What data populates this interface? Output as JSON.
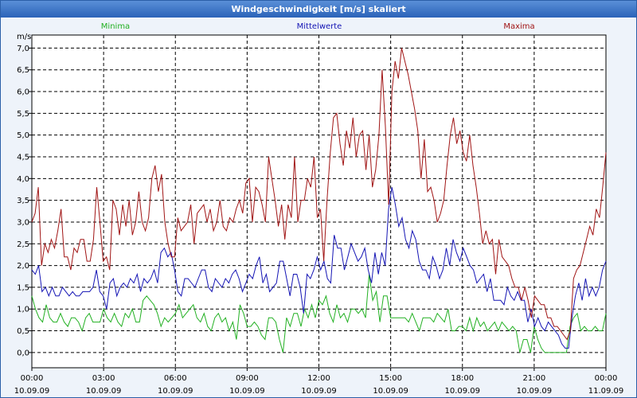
{
  "window": {
    "title": "Windgeschwindigkeit [m/s] skaliert"
  },
  "chart_data": {
    "type": "line",
    "title": "Windgeschwindigkeit [m/s] skaliert",
    "ylabel": "m/s",
    "xlabel": "",
    "ylim": [
      -0.35,
      7.3
    ],
    "xlim_hours": [
      0,
      24
    ],
    "grid": true,
    "legend_placement": "top",
    "y_ticks": [
      "0,0",
      "0,5",
      "1,0",
      "1,5",
      "2,0",
      "2,5",
      "3,0",
      "3,5",
      "4,0",
      "4,5",
      "5,0",
      "5,5",
      "6,0",
      "6,5",
      "7,0"
    ],
    "x_ticks": [
      {
        "time": "00:00",
        "date": "10.09.09"
      },
      {
        "time": "03:00",
        "date": "10.09.09"
      },
      {
        "time": "06:00",
        "date": "10.09.09"
      },
      {
        "time": "09:00",
        "date": "10.09.09"
      },
      {
        "time": "12:00",
        "date": "10.09.09"
      },
      {
        "time": "15:00",
        "date": "10.09.09"
      },
      {
        "time": "18:00",
        "date": "10.09.09"
      },
      {
        "time": "21:00",
        "date": "10.09.09"
      },
      {
        "time": "00:00",
        "date": "11.09.09"
      }
    ],
    "series": [
      {
        "name": "Minima",
        "color": "#22b022",
        "values": [
          1.3,
          1.0,
          0.8,
          0.7,
          1.1,
          0.8,
          0.7,
          0.7,
          0.9,
          0.7,
          0.6,
          0.8,
          0.8,
          0.7,
          0.5,
          0.8,
          0.9,
          0.7,
          0.7,
          0.7,
          1.0,
          0.8,
          0.7,
          0.9,
          0.7,
          0.6,
          0.9,
          0.8,
          1.0,
          0.7,
          0.7,
          1.2,
          1.3,
          1.2,
          1.1,
          0.9,
          0.6,
          0.8,
          0.7,
          0.8,
          0.9,
          1.1,
          0.8,
          0.9,
          1.0,
          1.1,
          0.8,
          0.7,
          0.9,
          0.6,
          0.5,
          0.8,
          0.9,
          0.7,
          0.8,
          0.5,
          0.7,
          0.3,
          1.1,
          0.9,
          0.6,
          0.6,
          0.7,
          0.6,
          0.4,
          0.3,
          0.8,
          0.8,
          0.7,
          0.3,
          0.0,
          0.8,
          0.6,
          0.9,
          0.9,
          0.6,
          1.0,
          0.8,
          1.1,
          0.8,
          1.2,
          1.1,
          1.3,
          0.9,
          0.7,
          1.1,
          0.8,
          0.9,
          0.7,
          1.0,
          1.0,
          0.9,
          1.0,
          0.8,
          1.8,
          1.2,
          1.4,
          0.7,
          1.3,
          1.3,
          0.8,
          0.8,
          0.8,
          0.8,
          0.8,
          0.7,
          0.9,
          0.7,
          0.5,
          0.8,
          0.8,
          0.8,
          0.7,
          0.9,
          0.8,
          0.7,
          1.0,
          0.5,
          0.5,
          0.6,
          0.6,
          0.5,
          0.8,
          0.5,
          0.8,
          0.6,
          0.7,
          0.5,
          0.6,
          0.7,
          0.5,
          0.7,
          0.6,
          0.5,
          0.6,
          0.5,
          0.0,
          0.3,
          0.3,
          0.0,
          0.6,
          0.3,
          0.1,
          0.0,
          0.0,
          0.0,
          0.0,
          0.0,
          0.0,
          0.0,
          0.6,
          0.8,
          0.9,
          0.5,
          0.6,
          0.5,
          0.5,
          0.6,
          0.5,
          0.5,
          0.9
        ]
      },
      {
        "name": "Mittelwerte",
        "color": "#1414b4",
        "values": [
          1.9,
          1.8,
          2.0,
          1.4,
          1.5,
          1.3,
          1.5,
          1.3,
          1.3,
          1.5,
          1.4,
          1.3,
          1.4,
          1.3,
          1.3,
          1.4,
          1.4,
          1.4,
          1.5,
          1.9,
          1.4,
          1.3,
          1.0,
          1.6,
          1.7,
          1.3,
          1.5,
          1.6,
          1.5,
          1.7,
          1.6,
          1.8,
          1.4,
          1.7,
          1.6,
          1.7,
          1.9,
          1.6,
          2.3,
          2.4,
          2.2,
          2.3,
          1.9,
          1.4,
          1.3,
          1.7,
          1.7,
          1.6,
          1.5,
          1.7,
          1.9,
          1.9,
          1.5,
          1.4,
          1.7,
          1.6,
          1.5,
          1.7,
          1.6,
          1.8,
          1.9,
          1.7,
          1.4,
          1.6,
          1.8,
          1.7,
          2.0,
          2.2,
          1.6,
          1.8,
          1.4,
          1.5,
          1.6,
          2.1,
          2.1,
          1.7,
          1.3,
          1.8,
          1.8,
          1.5,
          0.9,
          1.8,
          1.7,
          1.9,
          2.2,
          1.9,
          2.1,
          1.7,
          1.6,
          2.7,
          2.4,
          2.4,
          1.9,
          2.2,
          2.5,
          2.3,
          2.1,
          2.2,
          2.4,
          1.9,
          1.6,
          2.3,
          1.8,
          2.3,
          2.0,
          3.3,
          3.8,
          3.4,
          2.9,
          3.1,
          2.6,
          2.4,
          2.8,
          2.6,
          2.1,
          1.9,
          1.9,
          1.7,
          2.2,
          2.0,
          1.7,
          1.9,
          2.4,
          2.0,
          2.6,
          2.3,
          2.1,
          2.4,
          2.2,
          2.0,
          1.9,
          1.6,
          1.7,
          1.8,
          1.4,
          1.7,
          1.2,
          1.2,
          1.2,
          1.1,
          1.5,
          1.3,
          1.2,
          1.4,
          1.2,
          1.2,
          0.7,
          1.0,
          0.6,
          0.8,
          0.6,
          0.5,
          0.7,
          0.6,
          0.5,
          0.4,
          0.2,
          0.1,
          0.1,
          0.8,
          1.3,
          1.6,
          1.2,
          1.7,
          1.3,
          1.5,
          1.3,
          1.5,
          1.9,
          2.1
        ]
      },
      {
        "name": "Maxima",
        "color": "#a01414",
        "values": [
          3.0,
          3.2,
          3.8,
          2.0,
          2.5,
          2.3,
          2.6,
          2.4,
          2.8,
          3.3,
          2.2,
          2.2,
          1.9,
          2.4,
          2.3,
          2.6,
          2.6,
          2.1,
          2.1,
          2.6,
          3.8,
          3.0,
          2.1,
          2.2,
          1.9,
          3.5,
          3.3,
          2.7,
          3.4,
          2.9,
          3.5,
          2.7,
          3.0,
          3.7,
          3.0,
          2.8,
          3.1,
          4.0,
          4.3,
          3.7,
          4.1,
          3.0,
          2.5,
          2.2,
          2.2,
          3.1,
          2.8,
          2.9,
          3.0,
          3.4,
          2.5,
          3.2,
          3.3,
          3.4,
          3.0,
          3.3,
          2.8,
          3.0,
          3.5,
          2.9,
          2.8,
          3.1,
          3.0,
          3.3,
          3.5,
          3.2,
          3.9,
          4.0,
          3.0,
          3.8,
          3.7,
          3.4,
          3.0,
          4.5,
          4.0,
          3.5,
          2.9,
          3.4,
          2.6,
          3.4,
          3.1,
          4.5,
          3.0,
          3.5,
          3.5,
          4.0,
          3.8,
          4.5,
          3.1,
          3.3,
          2.1,
          3.5,
          4.6,
          5.4,
          5.5,
          4.8,
          4.3,
          5.1,
          4.7,
          5.4,
          4.5,
          5.0,
          5.1,
          4.2,
          5.0,
          3.8,
          4.2,
          5.0,
          6.5,
          5.2,
          3.4,
          6.0,
          6.7,
          6.3,
          7.0,
          6.7,
          6.4,
          6.0,
          5.6,
          5.1,
          4.0,
          4.9,
          3.7,
          3.8,
          3.5,
          3.0,
          3.2,
          3.5,
          4.3,
          5.0,
          5.4,
          4.8,
          5.1,
          4.6,
          4.4,
          5.0,
          4.3,
          3.8,
          3.2,
          2.5,
          2.8,
          2.5,
          2.6,
          1.8,
          2.6,
          2.2,
          2.1,
          2.0,
          1.7,
          1.5,
          1.5,
          1.2,
          1.5,
          1.2,
          0.8,
          1.3,
          1.2,
          1.1,
          1.1,
          0.8,
          0.8,
          0.6,
          0.6,
          0.5,
          0.4,
          0.3,
          0.5,
          1.7,
          1.9,
          2.0,
          2.3,
          2.6,
          2.9,
          2.7,
          3.3,
          3.1,
          3.8,
          4.6
        ]
      }
    ]
  }
}
